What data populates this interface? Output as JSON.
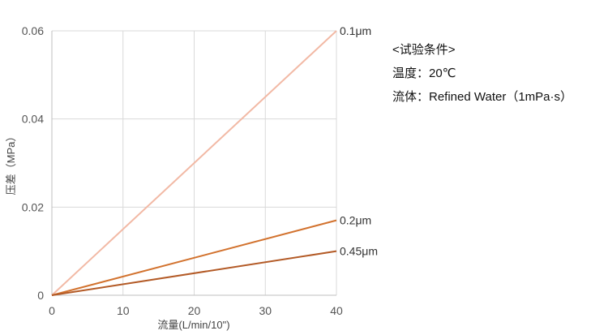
{
  "chart_data": {
    "type": "line",
    "xlabel": "流量(L/min/10\")",
    "ylabel": "压差（MPa）",
    "xlim": [
      0,
      40
    ],
    "ylim": [
      0,
      0.06
    ],
    "x_ticks": [
      0,
      10,
      20,
      30,
      40
    ],
    "y_ticks": [
      0,
      0.02,
      0.04,
      0.06
    ],
    "x_tick_labels": [
      "0",
      "10",
      "20",
      "30",
      "40"
    ],
    "y_tick_labels": [
      "0",
      "0.02",
      "0.04",
      "0.06"
    ],
    "grid": true,
    "series": [
      {
        "name": "0.1μm",
        "x": [
          0,
          40
        ],
        "values": [
          0,
          0.06
        ],
        "color": "#f2b9a5"
      },
      {
        "name": "0.2μm",
        "x": [
          0,
          40
        ],
        "values": [
          0,
          0.017
        ],
        "color": "#d2722e"
      },
      {
        "name": "0.45μm",
        "x": [
          0,
          40
        ],
        "values": [
          0,
          0.01
        ],
        "color": "#b35a26"
      }
    ]
  },
  "notes": {
    "heading": "<试验条件>",
    "temperature": "温度：20℃",
    "fluid": "流体：Refined Water（1mPa·s）"
  }
}
